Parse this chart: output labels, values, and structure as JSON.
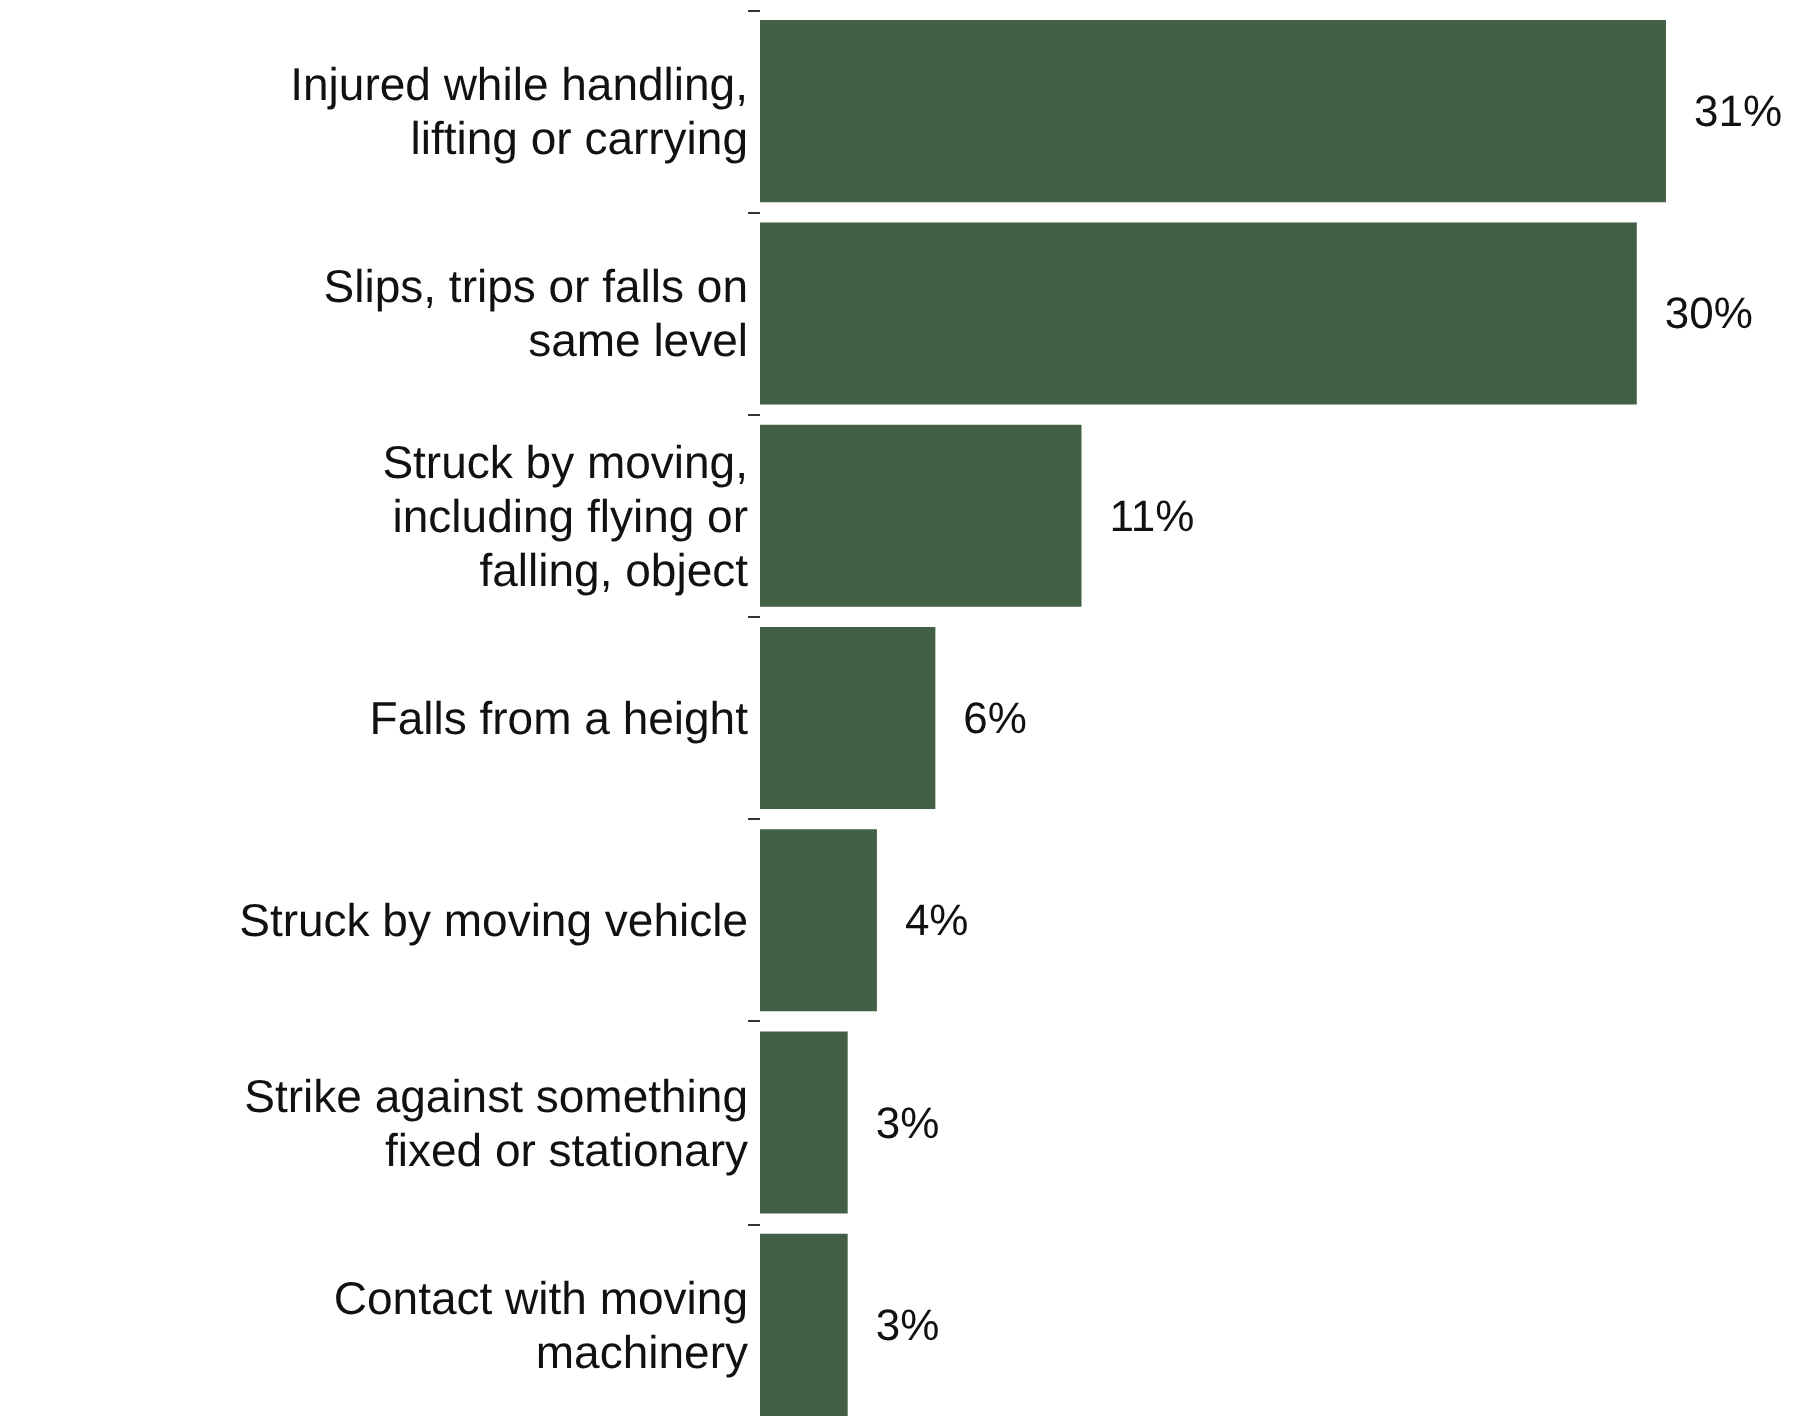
{
  "chart_data": {
    "type": "bar",
    "orientation": "horizontal",
    "categories": [
      "Injured while handling,\nlifting or carrying",
      "Slips, trips or falls on\nsame level",
      "Struck by moving,\nincluding flying or\nfalling, object",
      "Falls from a height",
      "Struck by moving vehicle",
      "Strike against something\nfixed or stationary",
      "Contact with moving\nmachinery"
    ],
    "values": [
      31,
      30,
      11,
      6,
      4,
      3,
      3
    ],
    "value_labels": [
      "31%",
      "30%",
      "11%",
      "6%",
      "4%",
      "3%",
      "3%"
    ],
    "color": "#435f45"
  }
}
